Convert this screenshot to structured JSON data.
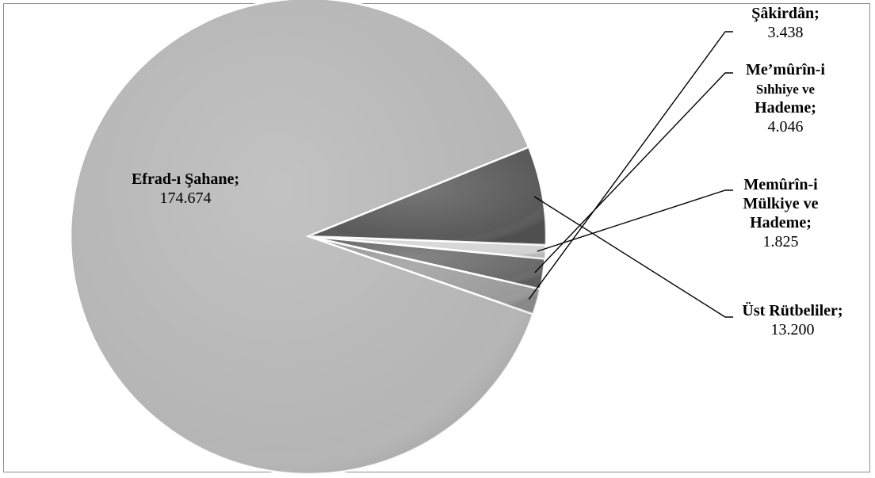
{
  "chart_data": {
    "type": "pie",
    "slices": [
      {
        "name": "Efrad-ı Şahane",
        "value": 174674,
        "value_label": "174.674",
        "color": "#b5b5b5",
        "label_lines": [
          [
            "Efrad-ı Şahane;"
          ]
        ]
      },
      {
        "name": "Şâkirdân",
        "value": 3438,
        "value_label": "3.438",
        "color": "#9a9a9a",
        "label_lines": [
          [
            "Şâkirdân;"
          ]
        ]
      },
      {
        "name": "Me’mûrîn-i Sıhhiye ve Hademe",
        "value": 4046,
        "value_label": "4.046",
        "color": "#6a6a6a",
        "label_lines": [
          [
            "Me’mûrîn-i"
          ],
          [
            "Sıhhiye ve",
            "sm"
          ],
          [
            "Hademe;"
          ]
        ]
      },
      {
        "name": "Memûrîn-i Mülkiye ve Hademe",
        "value": 1825,
        "value_label": "1.825",
        "color": "#d2d2d2",
        "label_lines": [
          [
            "Memûrîn-i"
          ],
          [
            "Mülkiye ve"
          ],
          [
            "Hademe;"
          ]
        ]
      },
      {
        "name": "Üst Rütbeliler",
        "value": 13200,
        "value_label": "13.200",
        "color": "#5a5a5a",
        "label_lines": [
          [
            "Üst Rütbeliler;"
          ]
        ]
      }
    ],
    "start_angle_deg": 22,
    "direction": "counterclockwise"
  }
}
